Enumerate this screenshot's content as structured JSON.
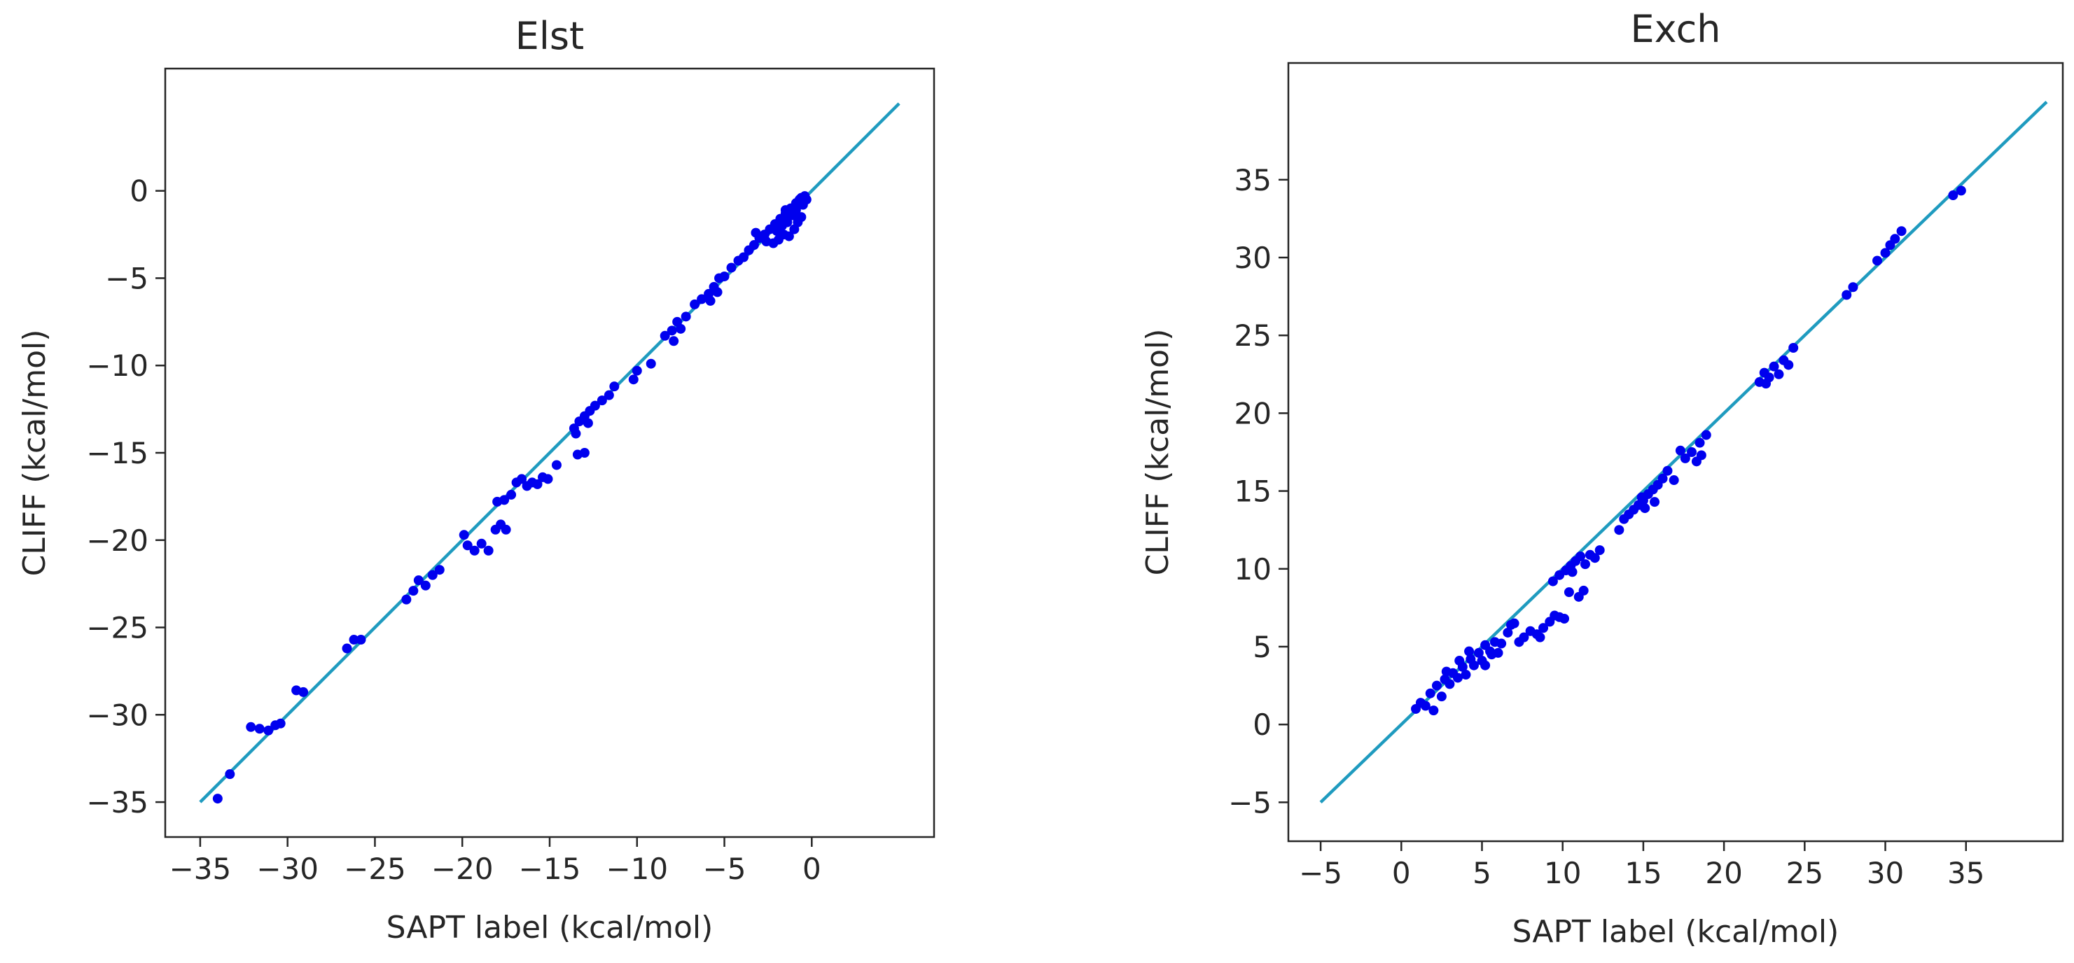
{
  "chart_data": [
    {
      "type": "scatter",
      "title": "Elst",
      "xlabel": "SAPT label (kcal/mol)",
      "ylabel": "CLIFF (kcal/mol)",
      "xlim": [
        -37,
        7
      ],
      "ylim": [
        -37,
        7
      ],
      "xticks": [
        -35,
        -30,
        -25,
        -20,
        -15,
        -10,
        -5,
        0
      ],
      "yticks": [
        -35,
        -30,
        -25,
        -20,
        -15,
        -10,
        -5,
        0
      ],
      "xtick_labels": [
        "−35",
        "−30",
        "−25",
        "−20",
        "−15",
        "−10",
        "−5",
        "0"
      ],
      "ytick_labels": [
        "−35",
        "−30",
        "−25",
        "−20",
        "−15",
        "−10",
        "−5",
        "0"
      ],
      "grid": false,
      "legend": "none",
      "reference_line": {
        "x": [
          -35,
          5
        ],
        "y": [
          -35,
          5
        ],
        "color": "#1f9bbf"
      },
      "marker_color": "#0000ee",
      "points": [
        [
          -34,
          -34.8
        ],
        [
          -33.3,
          -33.4
        ],
        [
          -32.1,
          -30.7
        ],
        [
          -31.6,
          -30.8
        ],
        [
          -31.1,
          -30.9
        ],
        [
          -30.7,
          -30.6
        ],
        [
          -30.4,
          -30.5
        ],
        [
          -29.5,
          -28.6
        ],
        [
          -29.1,
          -28.7
        ],
        [
          -26.6,
          -26.2
        ],
        [
          -26.2,
          -25.7
        ],
        [
          -25.8,
          -25.7
        ],
        [
          -23.2,
          -23.4
        ],
        [
          -22.8,
          -22.9
        ],
        [
          -22.5,
          -22.3
        ],
        [
          -22.1,
          -22.6
        ],
        [
          -21.7,
          -22.0
        ],
        [
          -21.3,
          -21.7
        ],
        [
          -19.9,
          -19.7
        ],
        [
          -19.7,
          -20.3
        ],
        [
          -19.3,
          -20.6
        ],
        [
          -18.9,
          -20.2
        ],
        [
          -18.5,
          -20.6
        ],
        [
          -18.1,
          -19.4
        ],
        [
          -17.8,
          -19.1
        ],
        [
          -17.5,
          -19.4
        ],
        [
          -18.0,
          -17.8
        ],
        [
          -17.6,
          -17.7
        ],
        [
          -17.2,
          -17.4
        ],
        [
          -16.9,
          -16.7
        ],
        [
          -16.6,
          -16.5
        ],
        [
          -16.3,
          -16.9
        ],
        [
          -16.0,
          -16.7
        ],
        [
          -15.7,
          -16.8
        ],
        [
          -15.4,
          -16.4
        ],
        [
          -15.1,
          -16.5
        ],
        [
          -14.6,
          -15.7
        ],
        [
          -13.4,
          -15.1
        ],
        [
          -13.0,
          -15.0
        ],
        [
          -13.6,
          -13.6
        ],
        [
          -13.3,
          -13.2
        ],
        [
          -13.0,
          -12.9
        ],
        [
          -12.7,
          -12.6
        ],
        [
          -12.4,
          -12.3
        ],
        [
          -12.0,
          -12.0
        ],
        [
          -11.6,
          -11.7
        ],
        [
          -11.3,
          -11.2
        ],
        [
          -13.5,
          -13.9
        ],
        [
          -12.8,
          -13.3
        ],
        [
          -10.2,
          -10.8
        ],
        [
          -10.0,
          -10.3
        ],
        [
          -9.2,
          -9.9
        ],
        [
          -8.4,
          -8.3
        ],
        [
          -8.0,
          -8.0
        ],
        [
          -7.7,
          -7.5
        ],
        [
          -7.5,
          -7.9
        ],
        [
          -7.2,
          -7.2
        ],
        [
          -7.9,
          -8.6
        ],
        [
          -6.7,
          -6.5
        ],
        [
          -6.3,
          -6.2
        ],
        [
          -5.9,
          -5.9
        ],
        [
          -5.6,
          -5.5
        ],
        [
          -5.3,
          -5.0
        ],
        [
          -5.0,
          -4.9
        ],
        [
          -4.6,
          -4.4
        ],
        [
          -5.8,
          -6.3
        ],
        [
          -5.4,
          -5.8
        ],
        [
          -4.2,
          -4.0
        ],
        [
          -3.9,
          -3.8
        ],
        [
          -3.6,
          -3.4
        ],
        [
          -3.3,
          -3.1
        ],
        [
          -3.0,
          -2.7
        ],
        [
          -2.7,
          -2.5
        ],
        [
          -2.4,
          -2.2
        ],
        [
          -2.1,
          -1.9
        ],
        [
          -1.8,
          -1.6
        ],
        [
          -1.5,
          -1.3
        ],
        [
          -1.2,
          -1.0
        ],
        [
          -0.9,
          -0.7
        ],
        [
          -0.6,
          -0.4
        ],
        [
          -0.4,
          -0.3
        ],
        [
          -3.2,
          -2.4
        ],
        [
          -2.6,
          -2.9
        ],
        [
          -2.2,
          -3.0
        ],
        [
          -1.9,
          -2.8
        ],
        [
          -1.6,
          -2.5
        ],
        [
          -1.3,
          -2.6
        ],
        [
          -1.0,
          -2.2
        ],
        [
          -0.8,
          -1.8
        ],
        [
          -0.6,
          -1.5
        ],
        [
          -1.7,
          -2.0
        ],
        [
          -1.4,
          -1.8
        ],
        [
          -1.1,
          -1.4
        ],
        [
          -0.9,
          -1.1
        ],
        [
          -0.5,
          -0.8
        ],
        [
          -0.3,
          -0.5
        ],
        [
          -2.0,
          -2.3
        ],
        [
          -1.5,
          -1.1
        ],
        [
          -0.7,
          -0.5
        ]
      ]
    },
    {
      "type": "scatter",
      "title": "Exch",
      "xlabel": "SAPT label (kcal/mol)",
      "ylabel": "CLIFF (kcal/mol)",
      "xlim": [
        -7,
        41
      ],
      "ylim": [
        -7.5,
        42.5
      ],
      "xticks": [
        -5,
        0,
        5,
        10,
        15,
        20,
        25,
        30,
        35
      ],
      "yticks": [
        -5,
        0,
        5,
        10,
        15,
        20,
        25,
        30,
        35
      ],
      "xtick_labels": [
        "−5",
        "0",
        "5",
        "10",
        "15",
        "20",
        "25",
        "30",
        "35"
      ],
      "ytick_labels": [
        "−5",
        "0",
        "5",
        "10",
        "15",
        "20",
        "25",
        "30",
        "35"
      ],
      "grid": false,
      "legend": "none",
      "reference_line": {
        "x": [
          -5,
          40
        ],
        "y": [
          -5,
          40
        ],
        "color": "#1f9bbf"
      },
      "marker_color": "#0000ee",
      "points": [
        [
          0.9,
          1.0
        ],
        [
          1.2,
          1.4
        ],
        [
          1.5,
          1.2
        ],
        [
          1.8,
          2.0
        ],
        [
          2.0,
          0.9
        ],
        [
          2.2,
          2.5
        ],
        [
          2.5,
          1.8
        ],
        [
          2.7,
          2.9
        ],
        [
          3.0,
          2.6
        ],
        [
          3.2,
          3.3
        ],
        [
          3.5,
          3.0
        ],
        [
          3.8,
          3.7
        ],
        [
          4.0,
          3.2
        ],
        [
          4.3,
          4.2
        ],
        [
          4.5,
          3.8
        ],
        [
          4.8,
          4.6
        ],
        [
          5.0,
          4.1
        ],
        [
          5.2,
          5.1
        ],
        [
          5.5,
          4.7
        ],
        [
          5.8,
          5.3
        ],
        [
          6.0,
          4.6
        ],
        [
          4.2,
          4.7
        ],
        [
          3.6,
          4.1
        ],
        [
          2.8,
          3.4
        ],
        [
          5.2,
          3.8
        ],
        [
          5.6,
          4.5
        ],
        [
          6.2,
          5.2
        ],
        [
          6.6,
          5.9
        ],
        [
          7.0,
          6.5
        ],
        [
          7.3,
          5.3
        ],
        [
          7.6,
          5.6
        ],
        [
          8.0,
          6.0
        ],
        [
          8.4,
          5.8
        ],
        [
          8.8,
          6.2
        ],
        [
          9.2,
          6.6
        ],
        [
          9.5,
          7.0
        ],
        [
          9.8,
          6.9
        ],
        [
          10.1,
          6.8
        ],
        [
          6.8,
          6.4
        ],
        [
          8.6,
          5.6
        ],
        [
          9.4,
          9.2
        ],
        [
          9.8,
          9.6
        ],
        [
          10.2,
          9.9
        ],
        [
          10.5,
          10.2
        ],
        [
          10.8,
          10.5
        ],
        [
          11.1,
          10.8
        ],
        [
          11.4,
          10.3
        ],
        [
          11.7,
          10.9
        ],
        [
          12.0,
          10.7
        ],
        [
          12.3,
          11.2
        ],
        [
          10.4,
          8.5
        ],
        [
          11.0,
          8.2
        ],
        [
          11.3,
          8.6
        ],
        [
          10.6,
          9.8
        ],
        [
          13.5,
          12.5
        ],
        [
          13.8,
          13.2
        ],
        [
          14.1,
          13.5
        ],
        [
          14.4,
          13.8
        ],
        [
          14.7,
          14.1
        ],
        [
          15.0,
          14.4
        ],
        [
          15.3,
          14.8
        ],
        [
          15.6,
          15.1
        ],
        [
          15.9,
          15.4
        ],
        [
          16.2,
          15.8
        ],
        [
          16.5,
          16.3
        ],
        [
          16.9,
          15.7
        ],
        [
          15.1,
          13.9
        ],
        [
          15.7,
          14.3
        ],
        [
          14.9,
          14.6
        ],
        [
          17.3,
          17.6
        ],
        [
          17.6,
          17.1
        ],
        [
          18.0,
          17.5
        ],
        [
          18.3,
          16.9
        ],
        [
          18.6,
          17.3
        ],
        [
          18.9,
          18.6
        ],
        [
          18.5,
          18.1
        ],
        [
          22.2,
          22.0
        ],
        [
          22.5,
          22.6
        ],
        [
          22.8,
          22.3
        ],
        [
          23.1,
          23.0
        ],
        [
          23.4,
          22.5
        ],
        [
          23.7,
          23.4
        ],
        [
          24.0,
          23.1
        ],
        [
          24.3,
          24.2
        ],
        [
          22.6,
          21.9
        ],
        [
          27.6,
          27.6
        ],
        [
          28.0,
          28.1
        ],
        [
          29.5,
          29.8
        ],
        [
          30.0,
          30.3
        ],
        [
          30.3,
          30.8
        ],
        [
          30.6,
          31.2
        ],
        [
          31.0,
          31.7
        ],
        [
          34.2,
          34.0
        ],
        [
          34.7,
          34.3
        ]
      ]
    }
  ]
}
